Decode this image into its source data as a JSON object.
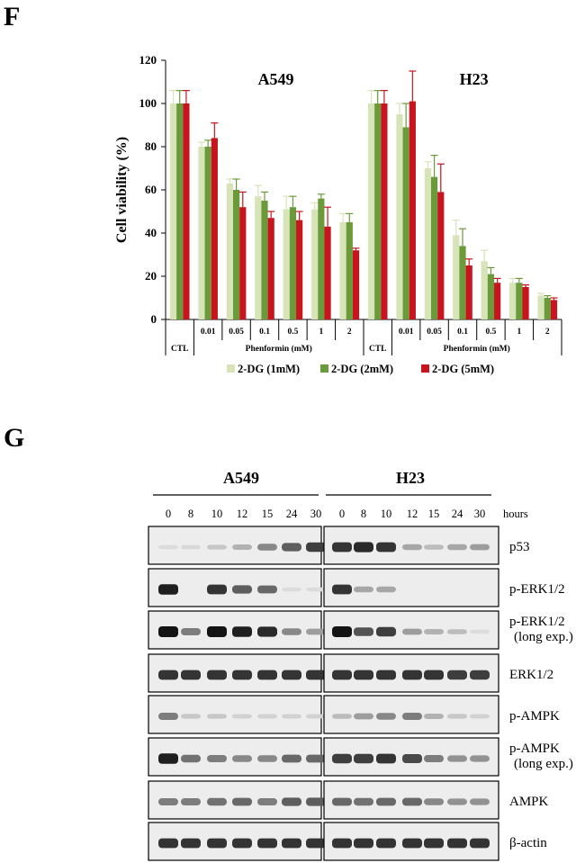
{
  "panel_f": {
    "letter": "F",
    "chart_data": {
      "type": "bar",
      "ylabel": "Cell viability (%)",
      "ylim": [
        0,
        120
      ],
      "yticks": [
        0,
        20,
        40,
        60,
        80,
        100,
        120
      ],
      "group_label": "Phenformin (mM)",
      "ctl_label": "CTL",
      "legend_position": "bottom",
      "series": [
        {
          "name": "2-DG (1mM)",
          "color": "#d6e4b8"
        },
        {
          "name": "2-DG (2mM)",
          "color": "#6b9a3a"
        },
        {
          "name": "2-DG (5mM)",
          "color": "#c8141e"
        }
      ],
      "panels": [
        {
          "title": "A549",
          "categories": [
            "",
            "0.01",
            "0.05",
            "0.1",
            "0.5",
            "1",
            "2"
          ],
          "values": [
            [
              100,
              100,
              100
            ],
            [
              80,
              80,
              84
            ],
            [
              63,
              60,
              52
            ],
            [
              57,
              55,
              47
            ],
            [
              51,
              52,
              46
            ],
            [
              51,
              56,
              43
            ],
            [
              45,
              45,
              32
            ]
          ],
          "errors": [
            [
              6,
              6,
              6
            ],
            [
              2,
              3,
              7
            ],
            [
              2,
              5,
              7
            ],
            [
              5,
              4,
              3
            ],
            [
              6,
              5,
              4
            ],
            [
              3,
              2,
              9
            ],
            [
              4,
              4,
              1
            ]
          ]
        },
        {
          "title": "H23",
          "categories": [
            "",
            "0.01",
            "0.05",
            "0.1",
            "0.5",
            "1",
            "2"
          ],
          "values": [
            [
              100,
              100,
              100
            ],
            [
              95,
              89,
              101
            ],
            [
              70,
              66,
              59
            ],
            [
              39,
              34,
              25
            ],
            [
              27,
              21,
              17
            ],
            [
              17,
              17,
              15
            ],
            [
              11,
              10,
              9
            ]
          ],
          "errors": [
            [
              6,
              6,
              6
            ],
            [
              5,
              11,
              14
            ],
            [
              3,
              10,
              13
            ],
            [
              7,
              8,
              3
            ],
            [
              5,
              3,
              2
            ],
            [
              2,
              2,
              1
            ],
            [
              1,
              1,
              1
            ]
          ]
        }
      ]
    }
  },
  "panel_g": {
    "letter": "G",
    "groups": [
      "A549",
      "H23"
    ],
    "timepoints": [
      "0",
      "8",
      "10",
      "12",
      "15",
      "24",
      "30"
    ],
    "time_unit": "hours",
    "blots": [
      {
        "label": "p53",
        "a549": [
          0.05,
          0.07,
          0.15,
          0.25,
          0.45,
          0.65,
          0.8
        ],
        "h23": [
          0.85,
          0.9,
          0.85,
          0.3,
          0.2,
          0.3,
          0.35
        ]
      },
      {
        "label": "p-ERK1/2",
        "a549": [
          0.95,
          0,
          0.85,
          0.65,
          0.6,
          0.05,
          0.05
        ],
        "h23": [
          0.85,
          0.3,
          0.3,
          0,
          0,
          0,
          0
        ]
      },
      {
        "label": "p-ERK1/2\n(long exp.)",
        "a549": [
          1,
          0.5,
          1,
          0.95,
          0.9,
          0.45,
          0.35
        ],
        "h23": [
          1,
          0.7,
          0.8,
          0.35,
          0.25,
          0.2,
          0.05
        ]
      },
      {
        "label": "ERK1/2",
        "a549": [
          0.85,
          0.85,
          0.85,
          0.85,
          0.85,
          0.85,
          0.85
        ],
        "h23": [
          0.85,
          0.85,
          0.85,
          0.85,
          0.85,
          0.8,
          0.8
        ]
      },
      {
        "label": "p-AMPK",
        "a549": [
          0.5,
          0.15,
          0.15,
          0.1,
          0.1,
          0.1,
          0.1
        ],
        "h23": [
          0.2,
          0.35,
          0.45,
          0.5,
          0.25,
          0.15,
          0.1
        ]
      },
      {
        "label": "p-AMPK\n(long exp.)",
        "a549": [
          0.95,
          0.55,
          0.5,
          0.45,
          0.45,
          0.6,
          0.6
        ],
        "h23": [
          0.8,
          0.8,
          0.85,
          0.75,
          0.5,
          0.4,
          0.4
        ]
      },
      {
        "label": "AMPK",
        "a549": [
          0.5,
          0.5,
          0.55,
          0.6,
          0.5,
          0.65,
          0.65
        ],
        "h23": [
          0.6,
          0.55,
          0.6,
          0.6,
          0.45,
          0.4,
          0.4
        ]
      },
      {
        "label": "β-actin",
        "a549": [
          0.85,
          0.85,
          0.85,
          0.85,
          0.85,
          0.85,
          0.85
        ],
        "h23": [
          0.85,
          0.85,
          0.85,
          0.85,
          0.85,
          0.85,
          0.85
        ]
      }
    ]
  }
}
